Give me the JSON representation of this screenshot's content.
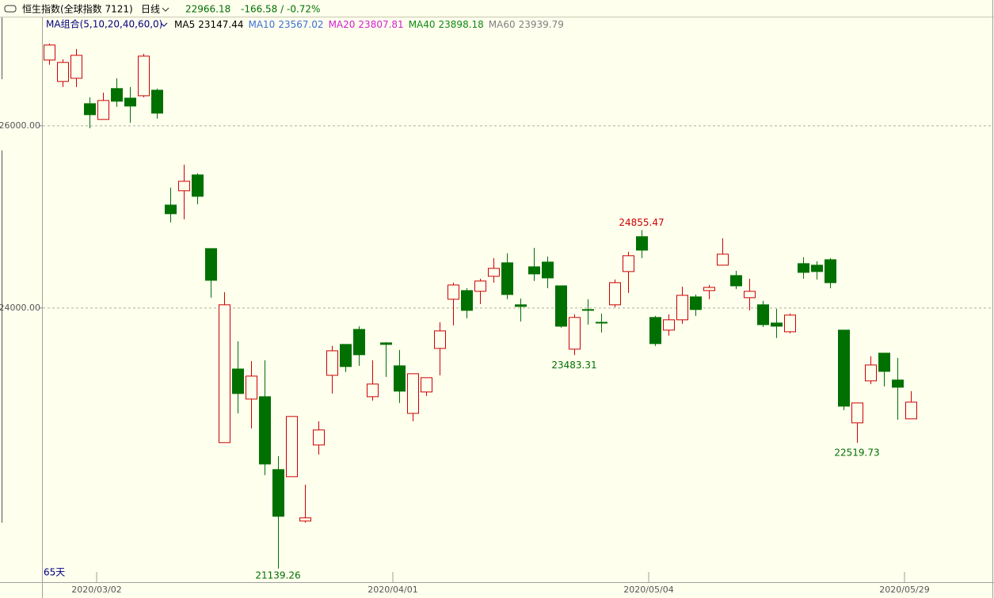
{
  "header": {
    "title": "恒生指数(全球指数 7121)",
    "period": "日线",
    "change": "-166.58 / -0.72%"
  },
  "chart_data": {
    "type": "candlestick",
    "ma_group": "MA组合(5,10,20,40,60,0)",
    "ma": [
      {
        "name": "MA5",
        "value": 23147.44,
        "color": "#000000"
      },
      {
        "name": "MA10",
        "value": 23567.02,
        "color": "#3b6fd8"
      },
      {
        "name": "MA20",
        "value": 23807.81,
        "color": "#d020d0"
      },
      {
        "name": "MA40",
        "value": 23898.18,
        "color": "#108a10"
      },
      {
        "name": "MA60",
        "value": 23939.79,
        "color": "#808080"
      }
    ],
    "categories": [
      null,
      null,
      null,
      null,
      "2020/03/02",
      null,
      null,
      null,
      null,
      null,
      null,
      null,
      null,
      null,
      null,
      null,
      null,
      null,
      null,
      null,
      null,
      null,
      null,
      null,
      null,
      null,
      "2020/04/01",
      null,
      null,
      null,
      null,
      null,
      null,
      null,
      null,
      null,
      null,
      null,
      null,
      null,
      null,
      null,
      null,
      null,
      null,
      "2020/05/04",
      null,
      null,
      null,
      null,
      null,
      null,
      null,
      null,
      null,
      null,
      null,
      null,
      null,
      null,
      null,
      null,
      null,
      null,
      "2020/05/29"
    ],
    "open": [
      26722,
      26487,
      26522,
      26243,
      26070,
      26409,
      26304,
      26330,
      26391,
      25130,
      25287,
      25461,
      24652,
      22522,
      23330,
      23000,
      23026,
      22226,
      22148,
      21661,
      22496,
      23261,
      23600,
      23765,
      23026,
      23617,
      23365,
      22843,
      23078,
      23556,
      24096,
      24191,
      24183,
      24348,
      24496,
      24035,
      24452,
      24504,
      24243,
      23548,
      23983,
      23843,
      24035,
      24400,
      24783,
      23896,
      23757,
      23870,
      24122,
      24191,
      24470,
      24356,
      24113,
      24035,
      23835,
      23739,
      24487,
      24470,
      24530,
      23757,
      22739,
      23200,
      23504,
      23209,
      22783
    ],
    "high": [
      26904,
      26730,
      26843,
      26313,
      26365,
      26522,
      26426,
      26791,
      26409,
      25322,
      25574,
      25478,
      24652,
      24174,
      23635,
      23417,
      23426,
      22374,
      22809,
      22061,
      22756,
      23583,
      23600,
      23800,
      23426,
      23626,
      23539,
      23278,
      23235,
      23843,
      24278,
      24217,
      24322,
      24548,
      24600,
      24104,
      24661,
      24565,
      24243,
      23930,
      24096,
      23939,
      24313,
      24617,
      24855.47,
      23913,
      23930,
      24235,
      24148,
      24252,
      24765,
      24409,
      24322,
      24078,
      23991,
      23939,
      24557,
      24513,
      24548,
      23757,
      22957,
      23470,
      23504,
      23452,
      23087
    ],
    "low": [
      26670,
      26426,
      26426,
      25974,
      26070,
      26209,
      26035,
      26313,
      26078,
      24939,
      24974,
      25139,
      24113,
      22522,
      22843,
      22678,
      22165,
      21139.26,
      22148,
      21643,
      22391,
      23061,
      23296,
      23365,
      22983,
      23243,
      22957,
      22756,
      23035,
      23261,
      23809,
      23887,
      24043,
      24278,
      24096,
      23852,
      24296,
      24217,
      23783,
      23483.31,
      23817,
      23730,
      24009,
      24165,
      24548,
      23583,
      23696,
      23826,
      23913,
      24096,
      24470,
      24209,
      23974,
      23791,
      23670,
      23722,
      24322,
      24313,
      24217,
      22878,
      22519.73,
      23165,
      23139,
      22774,
      22783
    ],
    "close": [
      26887,
      26696,
      26774,
      26122,
      26278,
      26270,
      26217,
      26765,
      26139,
      25035,
      25391,
      25226,
      24304,
      24035,
      23061,
      23252,
      22287,
      21713,
      22809,
      21696,
      22661,
      23530,
      23357,
      23487,
      23165,
      23600,
      23087,
      23278,
      23235,
      23748,
      24252,
      23974,
      24296,
      24435,
      24148,
      24017,
      24374,
      24330,
      23800,
      23896,
      23974,
      23835,
      24278,
      24574,
      24635,
      23609,
      23870,
      24139,
      23983,
      24226,
      24591,
      24243,
      24183,
      23817,
      23800,
      23922,
      24391,
      24400,
      24278,
      22922,
      22957,
      23374,
      23304,
      23130,
      22966.18
    ],
    "up_color": "#cc0000",
    "down_color": "#007000",
    "ylim": [
      20990,
      27190
    ],
    "yticks": [
      {
        "value": 24000,
        "label": "24000.00"
      },
      {
        "value": 26000,
        "label": "26000.00"
      }
    ],
    "grid": true,
    "period_label": "65天"
  }
}
